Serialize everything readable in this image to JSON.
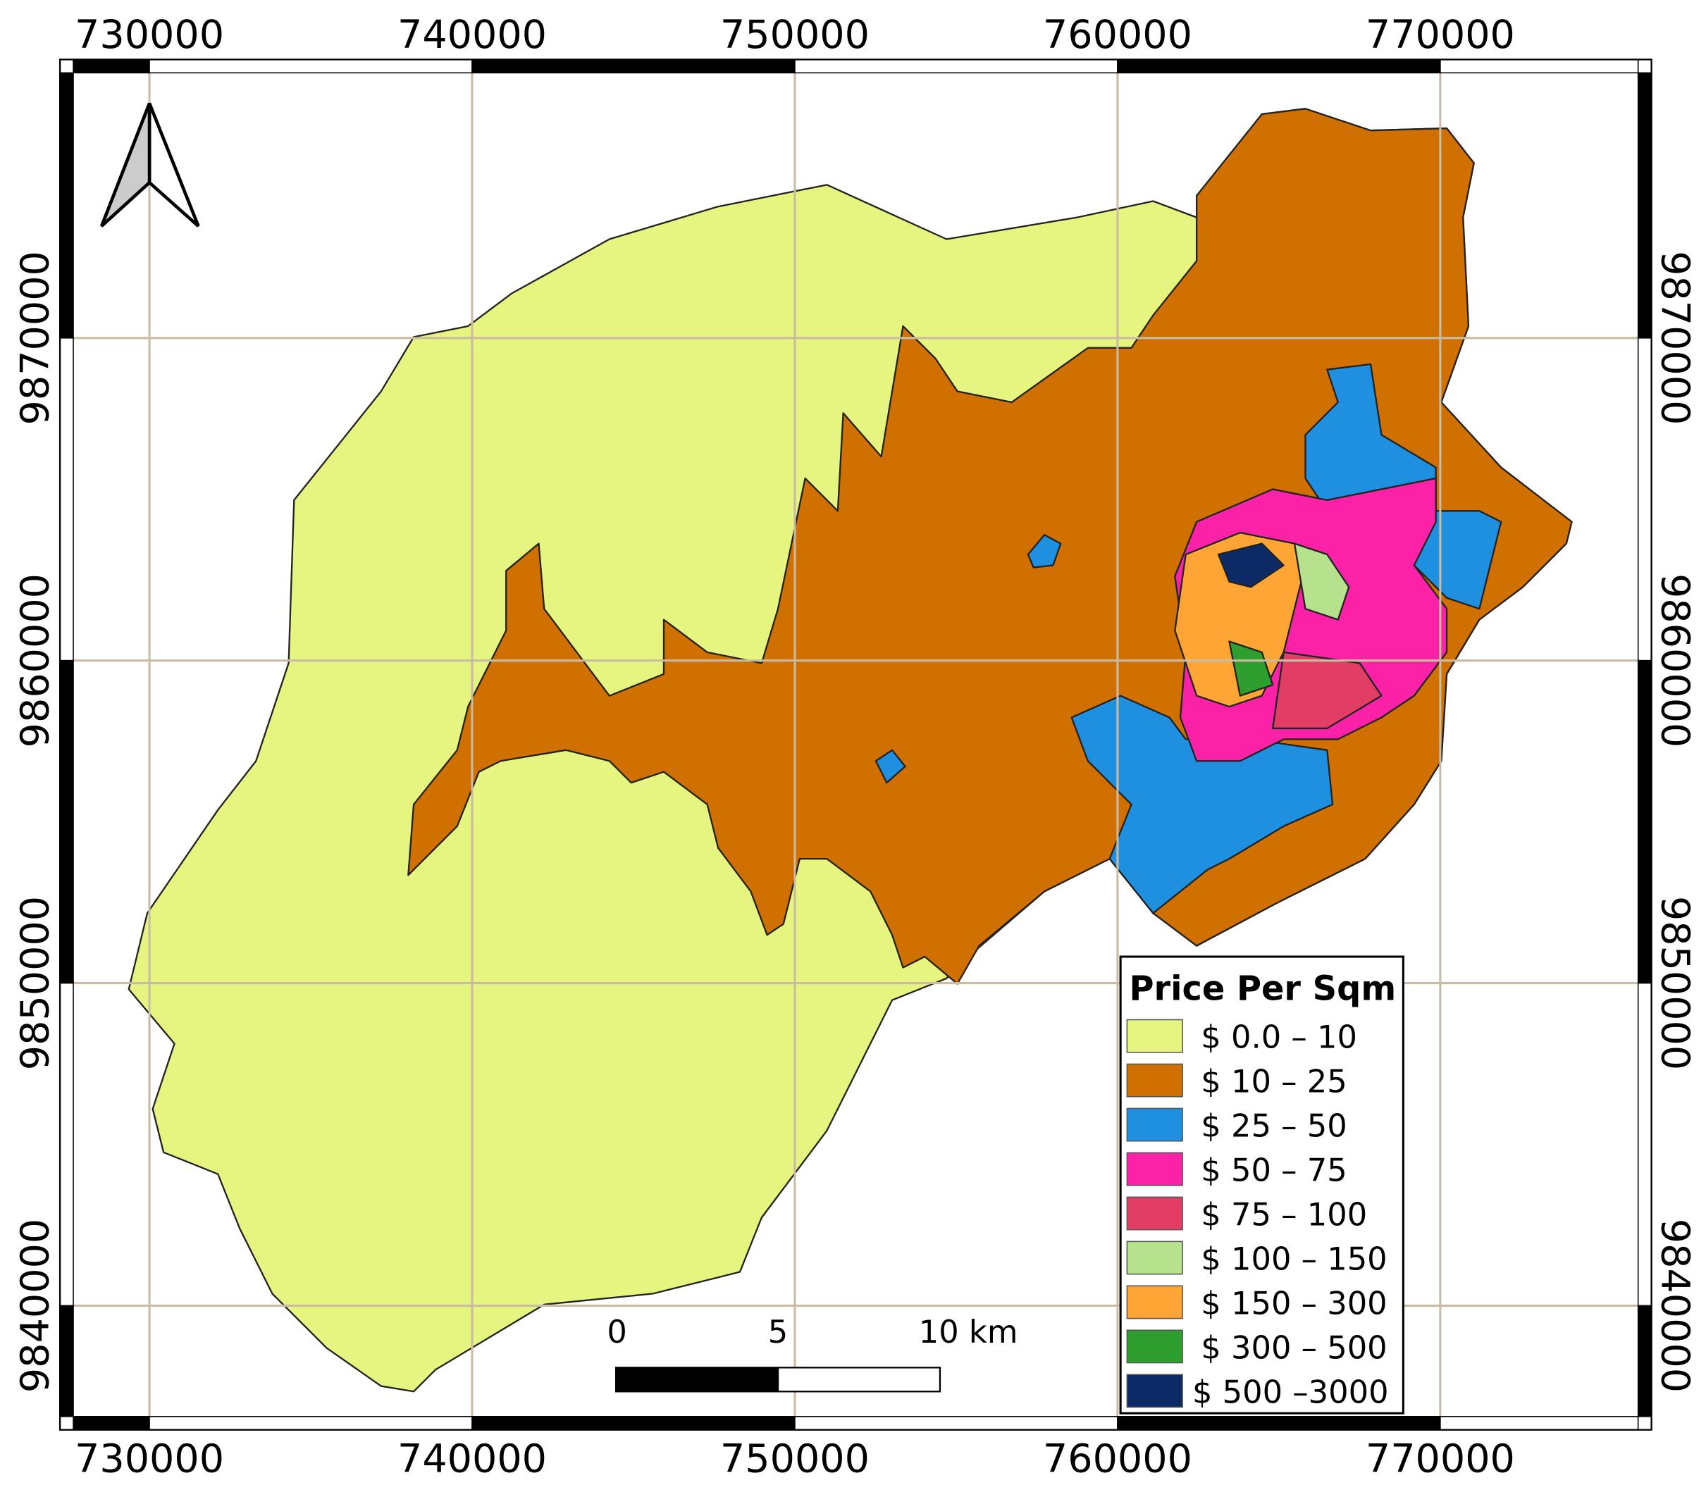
{
  "map": {
    "xlim": [
      727237,
      776536
    ],
    "ylim": [
      9836159,
      9878625
    ],
    "xticks": [
      730000,
      740000,
      750000,
      760000,
      770000
    ],
    "yticks": [
      9840000,
      9850000,
      9860000,
      9870000
    ],
    "grid": true,
    "grid_color": "#c9bca3",
    "legend": {
      "title": "Price Per Sqm",
      "items": [
        {
          "label": "$ 0.0 – 10",
          "color": "#e6f580"
        },
        {
          "label": "$ 10 – 25",
          "color": "#d07000"
        },
        {
          "label": "$ 25 – 50",
          "color": "#1f8fe0"
        },
        {
          "label": "$ 50 – 75",
          "color": "#fb22a8"
        },
        {
          "label": "$ 75 – 100",
          "color": "#e23d64"
        },
        {
          "label": "$ 100 – 150",
          "color": "#b6e28e"
        },
        {
          "label": "$ 150 – 300",
          "color": "#ffa535"
        },
        {
          "label": "$ 300 – 500",
          "color": "#2e9e2e"
        },
        {
          "label": "$ 500 –3000",
          "color": "#0b2a66"
        }
      ]
    },
    "scale_bar": {
      "labels": [
        "0",
        "5",
        "10 km"
      ]
    }
  }
}
